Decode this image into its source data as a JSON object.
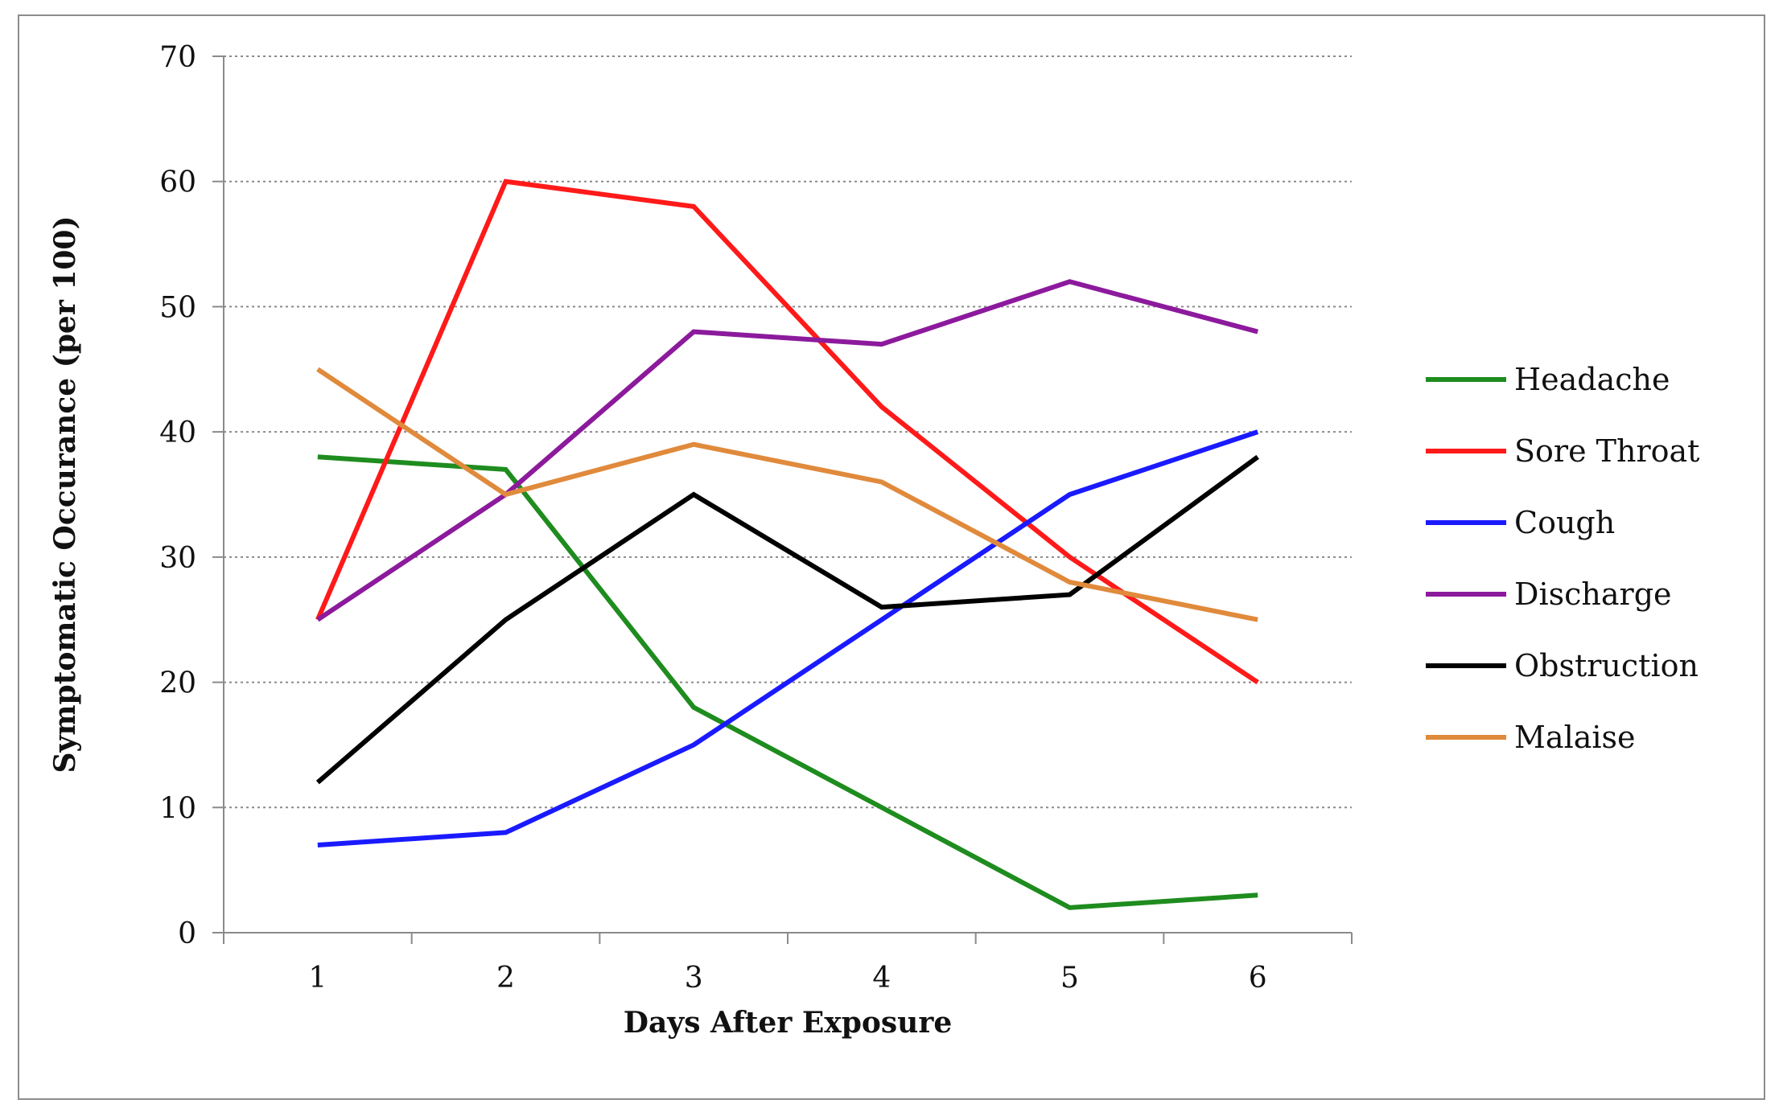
{
  "chart_data": {
    "type": "line",
    "title": "",
    "xlabel": "Days After Exposure",
    "ylabel": "Symptomatic Occurance (per 100)",
    "x": [
      1,
      2,
      3,
      4,
      5,
      6
    ],
    "ylim": [
      0,
      70
    ],
    "yticks": [
      0,
      10,
      20,
      30,
      40,
      50,
      60,
      70
    ],
    "grid": "horizontal dotted",
    "legend_position": "right",
    "series": [
      {
        "name": "Headache",
        "color": "#1e8c1e",
        "values": [
          38,
          37,
          18,
          10,
          2,
          3
        ]
      },
      {
        "name": "Sore Throat",
        "color": "#ff1a1a",
        "values": [
          25,
          60,
          58,
          42,
          30,
          20
        ]
      },
      {
        "name": "Cough",
        "color": "#1a1aff",
        "values": [
          7,
          8,
          15,
          25,
          35,
          40
        ]
      },
      {
        "name": "Discharge",
        "color": "#8c1a9c",
        "values": [
          25,
          35,
          48,
          47,
          52,
          48
        ]
      },
      {
        "name": "Obstruction",
        "color": "#000000",
        "values": [
          12,
          25,
          35,
          26,
          27,
          38
        ]
      },
      {
        "name": "Malaise",
        "color": "#e08a3c",
        "values": [
          45,
          35,
          39,
          36,
          28,
          25
        ]
      }
    ]
  }
}
